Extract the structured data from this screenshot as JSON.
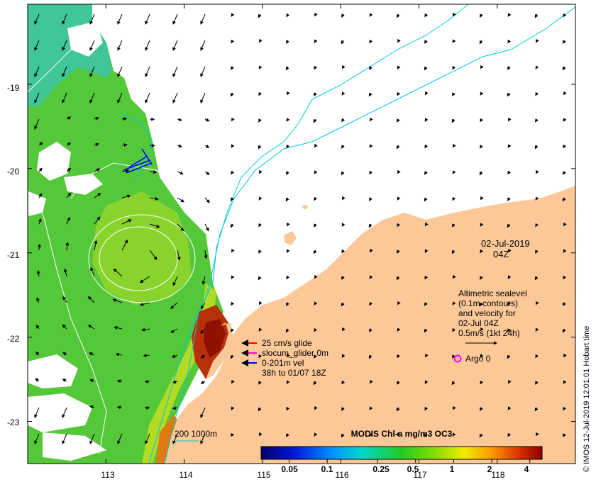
{
  "map": {
    "date": "02-Jul-2019",
    "time": "04Z",
    "lat_ticks": [
      "-19",
      "-20",
      "-21",
      "-22",
      "-23"
    ],
    "lon_ticks": [
      "113",
      "114",
      "115",
      "116",
      "117",
      "118"
    ],
    "lat_values": [
      -19,
      -20,
      -21,
      -22,
      -23
    ],
    "lon_values": [
      113,
      114,
      115,
      116,
      117,
      118
    ],
    "extent": {
      "lon_min": 112.0,
      "lon_max": 119.0,
      "lat_min": -23.5,
      "lat_max": -18.05
    }
  },
  "altimetry": {
    "lines": [
      "Altimetric sealevel",
      "(0.1m contours)",
      "and velocity for",
      "02-Jul 04Z",
      "0.5m/s (1kt 24h)"
    ]
  },
  "glider_legend": {
    "items": [
      {
        "label": "25 cm/s glide",
        "color": "#ff0000"
      },
      {
        "label": "slocum_glider 0m",
        "color": "#ff00ff"
      },
      {
        "label": "0-201m vel",
        "color": "#0000ff"
      }
    ],
    "period": "38h to 01/07 18Z"
  },
  "argo": {
    "label": "Argo 0",
    "color": "#ff00ff"
  },
  "bathymetry": {
    "label": "200  1000m",
    "color": "#00c8d8"
  },
  "colorbar": {
    "title": "MODIS Chl-a mg/m3 OC3",
    "tick_labels": [
      "0.05",
      "0.1",
      "0.25",
      "0.5",
      "1",
      "2",
      "4"
    ],
    "tick_values": [
      0.05,
      0.1,
      0.25,
      0.5,
      1,
      2,
      4
    ],
    "range": [
      0.03,
      5
    ]
  },
  "credit": "© IMOS 12-Jul-2019 12:01:01 Hobart time",
  "colors": {
    "land": "#fcc898",
    "ocean_high": "#44cc22",
    "vector": "#000000",
    "contour": "#ffffff"
  }
}
